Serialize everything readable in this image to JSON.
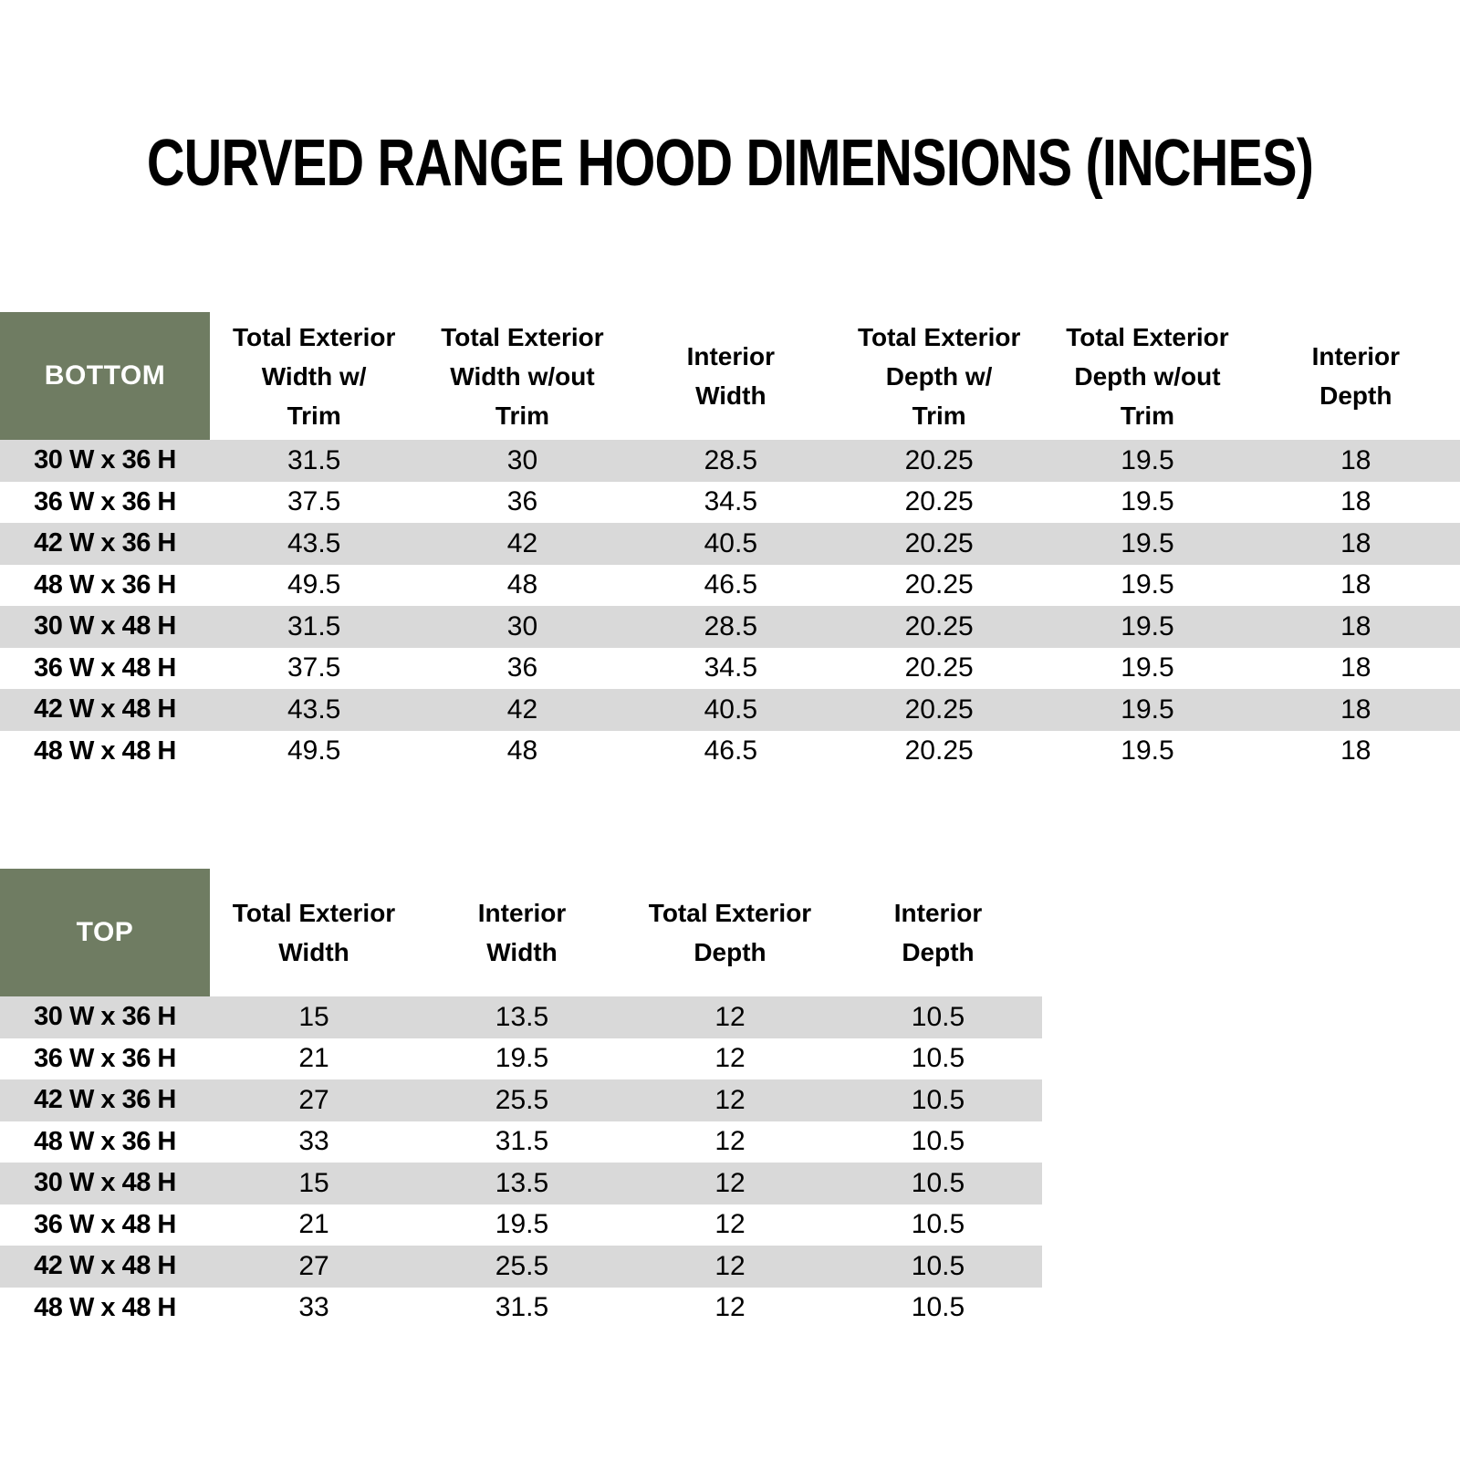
{
  "page": {
    "title": "CURVED RANGE HOOD DIMENSIONS (INCHES)"
  },
  "colors": {
    "header_green": "#6F7C62",
    "stripe_gray": "#D9D9D9",
    "header_text": "#FFFFFF",
    "body_text": "#000000",
    "background": "#FFFFFF"
  },
  "bottom_table": {
    "corner_label": "BOTTOM",
    "columns": [
      "Total Exterior\nWidth w/\nTrim",
      "Total Exterior\nWidth w/out\nTrim",
      "Interior\nWidth",
      "Total Exterior\nDepth w/\nTrim",
      "Total Exterior\nDepth w/out\nTrim",
      "Interior\nDepth"
    ],
    "rows": [
      {
        "label": "30 W x 36 H",
        "values": [
          "31.5",
          "30",
          "28.5",
          "20.25",
          "19.5",
          "18"
        ]
      },
      {
        "label": "36 W x 36 H",
        "values": [
          "37.5",
          "36",
          "34.5",
          "20.25",
          "19.5",
          "18"
        ]
      },
      {
        "label": "42 W x 36 H",
        "values": [
          "43.5",
          "42",
          "40.5",
          "20.25",
          "19.5",
          "18"
        ]
      },
      {
        "label": "48 W x 36 H",
        "values": [
          "49.5",
          "48",
          "46.5",
          "20.25",
          "19.5",
          "18"
        ]
      },
      {
        "label": "30 W x 48 H",
        "values": [
          "31.5",
          "30",
          "28.5",
          "20.25",
          "19.5",
          "18"
        ]
      },
      {
        "label": "36 W x 48 H",
        "values": [
          "37.5",
          "36",
          "34.5",
          "20.25",
          "19.5",
          "18"
        ]
      },
      {
        "label": "42 W x 48 H",
        "values": [
          "43.5",
          "42",
          "40.5",
          "20.25",
          "19.5",
          "18"
        ]
      },
      {
        "label": "48 W x 48 H",
        "values": [
          "49.5",
          "48",
          "46.5",
          "20.25",
          "19.5",
          "18"
        ]
      }
    ]
  },
  "top_table": {
    "corner_label": "TOP",
    "columns": [
      "Total Exterior\nWidth",
      "Interior\nWidth",
      "Total Exterior\nDepth",
      "Interior\nDepth"
    ],
    "rows": [
      {
        "label": "30 W x 36 H",
        "values": [
          "15",
          "13.5",
          "12",
          "10.5"
        ]
      },
      {
        "label": "36 W x 36 H",
        "values": [
          "21",
          "19.5",
          "12",
          "10.5"
        ]
      },
      {
        "label": "42 W x 36 H",
        "values": [
          "27",
          "25.5",
          "12",
          "10.5"
        ]
      },
      {
        "label": "48 W x 36 H",
        "values": [
          "33",
          "31.5",
          "12",
          "10.5"
        ]
      },
      {
        "label": "30 W x 48 H",
        "values": [
          "15",
          "13.5",
          "12",
          "10.5"
        ]
      },
      {
        "label": "36 W x 48 H",
        "values": [
          "21",
          "19.5",
          "12",
          "10.5"
        ]
      },
      {
        "label": "42 W x 48 H",
        "values": [
          "27",
          "25.5",
          "12",
          "10.5"
        ]
      },
      {
        "label": "48 W x 48 H",
        "values": [
          "33",
          "31.5",
          "12",
          "10.5"
        ]
      }
    ]
  }
}
